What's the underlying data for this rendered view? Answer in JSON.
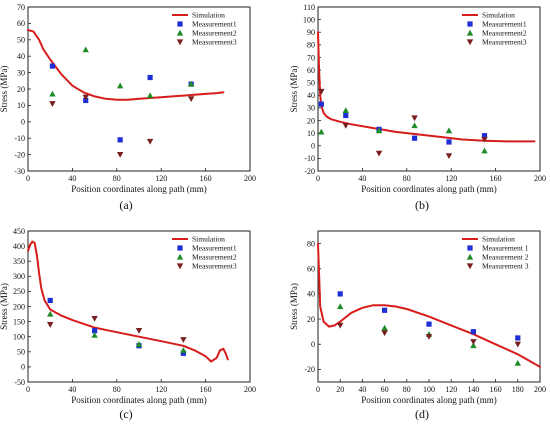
{
  "chart_data": [
    {
      "panel_label": "(a)",
      "type": "scatter+line",
      "xlabel": "Position coordinates along path (mm)",
      "ylabel": "Stress (MPa)",
      "xlim": [
        0,
        200
      ],
      "ylim": [
        -30,
        70
      ],
      "xticks": [
        "0",
        "40",
        "80",
        "120",
        "160",
        "200"
      ],
      "yticks": [
        "-30",
        "-20",
        "-10",
        "0",
        "10",
        "20",
        "30",
        "40",
        "50",
        "60",
        "70"
      ],
      "legend": [
        "Simulation",
        "Measurement1",
        "Measurement2",
        "Measurement3"
      ],
      "simulation": {
        "name": "Simulation",
        "x": [
          0,
          5,
          10,
          14,
          20,
          30,
          40,
          50,
          60,
          70,
          80,
          90,
          100,
          110,
          120,
          130,
          140,
          150,
          160,
          170,
          176
        ],
        "y": [
          56,
          55,
          50,
          44,
          38,
          29,
          22,
          18,
          15.5,
          14,
          13.5,
          13.5,
          14,
          14.5,
          15,
          15.5,
          16,
          16.5,
          17,
          17.5,
          18
        ]
      },
      "series": [
        {
          "name": "Measurement1",
          "x": [
            22,
            52,
            83,
            110,
            147
          ],
          "y": [
            34,
            13,
            -11,
            27,
            23
          ]
        },
        {
          "name": "Measurement2",
          "x": [
            22,
            52,
            83,
            110,
            147
          ],
          "y": [
            17,
            44,
            22,
            16,
            23
          ]
        },
        {
          "name": "Measurement3",
          "x": [
            22,
            52,
            83,
            110,
            147
          ],
          "y": [
            11,
            15,
            -20,
            -12,
            14
          ]
        }
      ]
    },
    {
      "panel_label": "(b)",
      "type": "scatter+line",
      "xlabel": "Position coordinates along path (mm)",
      "ylabel": "Stress (MPa)",
      "xlim": [
        0,
        200
      ],
      "ylim": [
        -20,
        110
      ],
      "xticks": [
        "0",
        "40",
        "80",
        "120",
        "160",
        "200"
      ],
      "yticks": [
        "-20",
        "-10",
        "0",
        "10",
        "20",
        "30",
        "40",
        "50",
        "60",
        "70",
        "80",
        "90",
        "100",
        "110"
      ],
      "legend": [
        "Simulation",
        "Measurement1",
        "Measurement2",
        "Measurement3"
      ],
      "simulation": {
        "name": "Simulation",
        "x": [
          0,
          1,
          2,
          3,
          5,
          8,
          12,
          20,
          30,
          50,
          70,
          90,
          110,
          130,
          150,
          170,
          195
        ],
        "y": [
          90,
          60,
          40,
          32,
          26,
          23,
          21,
          19,
          17,
          14,
          11,
          9,
          7,
          5,
          4,
          3.5,
          3.5
        ]
      },
      "series": [
        {
          "name": "Measurement1",
          "x": [
            3,
            25,
            55,
            87,
            118,
            150
          ],
          "y": [
            33,
            24,
            13,
            6,
            3,
            8
          ]
        },
        {
          "name": "Measurement2",
          "x": [
            3,
            25,
            55,
            87,
            118,
            150
          ],
          "y": [
            11,
            28,
            12,
            16,
            12,
            -4
          ]
        },
        {
          "name": "Measurement3",
          "x": [
            3,
            25,
            55,
            87,
            118,
            150
          ],
          "y": [
            43,
            16,
            -6,
            22,
            -8,
            5
          ]
        }
      ]
    },
    {
      "panel_label": "(c)",
      "type": "scatter+line",
      "xlabel": "Position coordinates along path (mm)",
      "ylabel": "Stress (MPa)",
      "xlim": [
        0,
        200
      ],
      "ylim": [
        -50,
        450
      ],
      "xticks": [
        "0",
        "40",
        "80",
        "120",
        "160",
        "200"
      ],
      "yticks": [
        "-50",
        "0",
        "50",
        "100",
        "150",
        "200",
        "250",
        "300",
        "350",
        "400",
        "450"
      ],
      "legend": [
        "Simulation",
        "Measurement1",
        "Measurement2",
        "Measurement3"
      ],
      "simulation": {
        "name": "Simulation",
        "x": [
          0,
          2,
          4,
          6,
          8,
          10,
          12,
          15,
          20,
          30,
          40,
          60,
          80,
          100,
          120,
          140,
          150,
          160,
          165,
          170,
          173,
          176,
          178,
          180
        ],
        "y": [
          385,
          405,
          415,
          410,
          370,
          310,
          260,
          220,
          190,
          170,
          155,
          130,
          115,
          100,
          85,
          70,
          55,
          35,
          18,
          30,
          55,
          60,
          45,
          25
        ]
      },
      "series": [
        {
          "name": "Measurement1",
          "x": [
            20,
            60,
            100,
            140
          ],
          "y": [
            220,
            120,
            70,
            45
          ]
        },
        {
          "name": "Measurement2",
          "x": [
            20,
            60,
            100,
            140
          ],
          "y": [
            175,
            105,
            75,
            55
          ]
        },
        {
          "name": "Measurement3",
          "x": [
            20,
            60,
            100,
            140
          ],
          "y": [
            140,
            160,
            120,
            90
          ]
        }
      ]
    },
    {
      "panel_label": "(d)",
      "type": "scatter+line",
      "xlabel": "Position coordinates along path (mm)",
      "ylabel": "Stress (MPa)",
      "xlim": [
        0,
        200
      ],
      "ylim": [
        -30,
        90
      ],
      "xticks": [
        "0",
        "20",
        "40",
        "60",
        "80",
        "100",
        "120",
        "140",
        "160",
        "180",
        "200"
      ],
      "yticks": [
        "-20",
        "0",
        "20",
        "40",
        "60",
        "80"
      ],
      "legend": [
        "Simulation",
        "Measurement 1",
        "Measurement 2",
        "Measurement 3"
      ],
      "simulation": {
        "name": "Simulation",
        "x": [
          0,
          2,
          5,
          10,
          15,
          20,
          30,
          40,
          50,
          60,
          70,
          80,
          100,
          120,
          140,
          160,
          180,
          200
        ],
        "y": [
          80,
          30,
          18,
          14,
          15,
          18,
          25,
          29,
          31,
          31,
          30,
          28,
          22,
          15,
          8,
          0,
          -8,
          -18
        ]
      },
      "series": [
        {
          "name": "Measurement 1",
          "x": [
            20,
            60,
            100,
            140,
            180
          ],
          "y": [
            40,
            27,
            16,
            10,
            5
          ]
        },
        {
          "name": "Measurement 2",
          "x": [
            20,
            60,
            100,
            140,
            180
          ],
          "y": [
            30,
            13,
            8,
            -1,
            -15
          ]
        },
        {
          "name": "Measurement 3",
          "x": [
            20,
            60,
            100,
            140,
            180
          ],
          "y": [
            15,
            9,
            6,
            2,
            0
          ]
        }
      ]
    }
  ],
  "colors": {
    "simulation": "#d71c1c",
    "measurement1": "#1f2fd6",
    "measurement2": "#1e8c27",
    "measurement3": "#7a1f1f"
  }
}
